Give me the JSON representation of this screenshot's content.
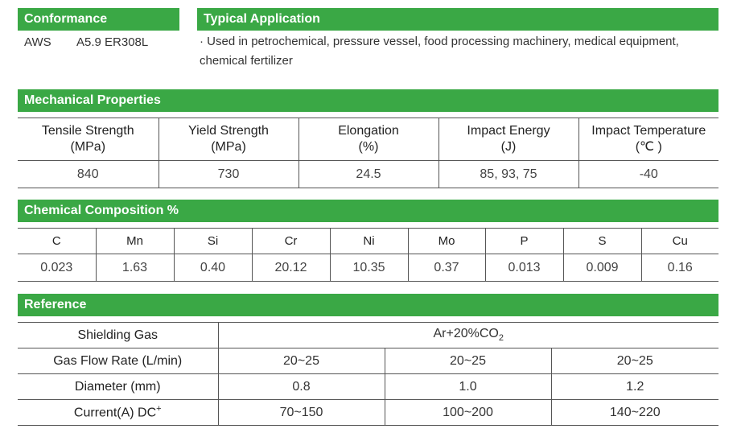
{
  "conformance": {
    "title": "Conformance",
    "standard": "AWS",
    "spec": "A5.9 ER308L"
  },
  "application": {
    "title": "Typical Application",
    "text": "· Used in petrochemical, pressure vessel, food processing machinery, medical equipment, chemical fertilizer"
  },
  "mechanical": {
    "title": "Mechanical Properties",
    "headers": [
      {
        "name": "Tensile Strength",
        "unit": "(MPa)"
      },
      {
        "name": "Yield Strength",
        "unit": "(MPa)"
      },
      {
        "name": "Elongation",
        "unit": "(%)"
      },
      {
        "name": "Impact Energy",
        "unit": "(J)"
      },
      {
        "name": "Impact Temperature",
        "unit": "(℃ )"
      }
    ],
    "values": [
      "840",
      "730",
      "24.5",
      "85, 93, 75",
      "-40"
    ]
  },
  "chemical": {
    "title": "Chemical Composition %",
    "elements": [
      "C",
      "Mn",
      "Si",
      "Cr",
      "Ni",
      "Mo",
      "P",
      "S",
      "Cu"
    ],
    "values": [
      "0.023",
      "1.63",
      "0.40",
      "20.12",
      "10.35",
      "0.37",
      "0.013",
      "0.009",
      "0.16"
    ]
  },
  "reference": {
    "title": "Reference",
    "shielding_gas_label": "Shielding Gas",
    "shielding_gas_main": "Ar+20%CO",
    "shielding_gas_sub": "2",
    "gas_flow_label": "Gas Flow Rate (L/min)",
    "gas_flow": [
      "20~25",
      "20~25",
      "20~25"
    ],
    "diameter_label": "Diameter (mm)",
    "diameter": [
      "0.8",
      "1.0",
      "1.2"
    ],
    "current_label": "Current(A) DC",
    "current_sup": "+",
    "current": [
      "70~150",
      "100~200",
      "140~220"
    ]
  }
}
